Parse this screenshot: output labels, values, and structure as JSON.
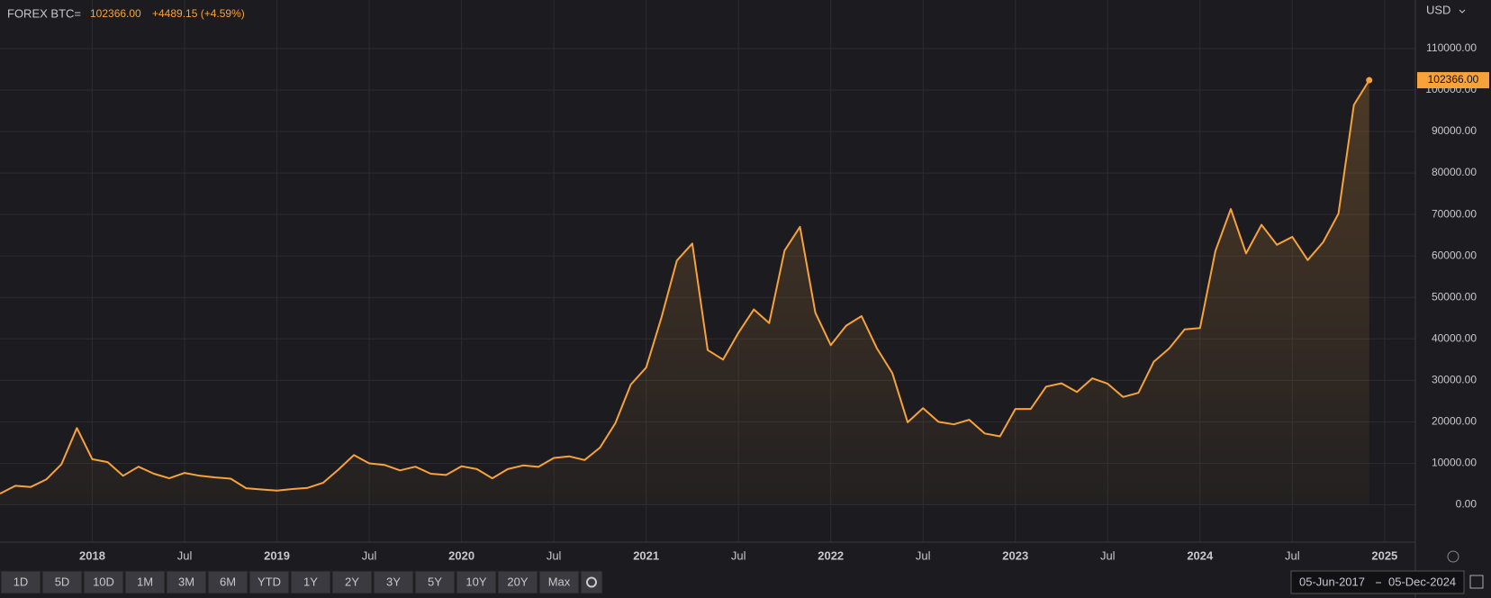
{
  "header": {
    "symbol": "FOREX BTC=",
    "price": "102366.00",
    "change": "+4489.15 (+4.59%)",
    "currency": "USD"
  },
  "chart_data": {
    "type": "line",
    "x": [
      "2017-07",
      "2017-08",
      "2017-09",
      "2017-10",
      "2017-11",
      "2017-12",
      "2018-01",
      "2018-02",
      "2018-03",
      "2018-04",
      "2018-05",
      "2018-06",
      "2018-07",
      "2018-08",
      "2018-09",
      "2018-10",
      "2018-11",
      "2018-12",
      "2019-01",
      "2019-02",
      "2019-03",
      "2019-04",
      "2019-05",
      "2019-06",
      "2019-07",
      "2019-08",
      "2019-09",
      "2019-10",
      "2019-11",
      "2019-12",
      "2020-01",
      "2020-02",
      "2020-03",
      "2020-04",
      "2020-05",
      "2020-06",
      "2020-07",
      "2020-08",
      "2020-09",
      "2020-10",
      "2020-11",
      "2020-12",
      "2021-01",
      "2021-02",
      "2021-03",
      "2021-04",
      "2021-05",
      "2021-06",
      "2021-07",
      "2021-08",
      "2021-09",
      "2021-10",
      "2021-11",
      "2021-12",
      "2022-01",
      "2022-02",
      "2022-03",
      "2022-04",
      "2022-05",
      "2022-06",
      "2022-07",
      "2022-08",
      "2022-09",
      "2022-10",
      "2022-11",
      "2022-12",
      "2023-01",
      "2023-02",
      "2023-03",
      "2023-04",
      "2023-05",
      "2023-06",
      "2023-07",
      "2023-08",
      "2023-09",
      "2023-10",
      "2023-11",
      "2023-12",
      "2024-01",
      "2024-02",
      "2024-03",
      "2024-04",
      "2024-05",
      "2024-06",
      "2024-07",
      "2024-08",
      "2024-09",
      "2024-10",
      "2024-11",
      "2024-12"
    ],
    "series": [
      {
        "name": "BTC",
        "color": "#f7a23b",
        "values": [
          2700,
          4600,
          4300,
          6100,
          9800,
          18500,
          11000,
          10300,
          7000,
          9200,
          7500,
          6400,
          7700,
          7000,
          6600,
          6300,
          4000,
          3700,
          3450,
          3800,
          4100,
          5300,
          8500,
          12000,
          10000,
          9600,
          8300,
          9200,
          7500,
          7200,
          9300,
          8600,
          6400,
          8600,
          9500,
          9150,
          11300,
          11700,
          10800,
          13800,
          19700,
          29000,
          33100,
          45200,
          58900,
          63000,
          37300,
          35000,
          41500,
          47100,
          43800,
          61300,
          67000,
          46300,
          38500,
          43200,
          45500,
          37700,
          31800,
          19900,
          23300,
          20000,
          19400,
          20500,
          17200,
          16500,
          23100,
          23100,
          28500,
          29300,
          27200,
          30500,
          29200,
          26000,
          27000,
          34500,
          37700,
          42300,
          42600,
          61200,
          71300,
          60600,
          67500,
          62700,
          64600,
          59000,
          63300,
          70200,
          96400,
          102366
        ]
      }
    ],
    "xlim": [
      "2017-07",
      "2025-03"
    ],
    "xticks": [
      {
        "value": "2018-01",
        "label": "2018"
      },
      {
        "value": "2018-07",
        "label": "Jul"
      },
      {
        "value": "2019-01",
        "label": "2019"
      },
      {
        "value": "2019-07",
        "label": "Jul"
      },
      {
        "value": "2020-01",
        "label": "2020"
      },
      {
        "value": "2020-07",
        "label": "Jul"
      },
      {
        "value": "2021-01",
        "label": "2021"
      },
      {
        "value": "2021-07",
        "label": "Jul"
      },
      {
        "value": "2022-01",
        "label": "2022"
      },
      {
        "value": "2022-07",
        "label": "Jul"
      },
      {
        "value": "2023-01",
        "label": "2023"
      },
      {
        "value": "2023-07",
        "label": "Jul"
      },
      {
        "value": "2024-01",
        "label": "2024"
      },
      {
        "value": "2024-07",
        "label": "Jul"
      },
      {
        "value": "2025-01",
        "label": "2025"
      }
    ],
    "ylim": [
      -9000,
      121700
    ],
    "yticks": [
      {
        "value": 0,
        "label": "0.00"
      },
      {
        "value": 10000,
        "label": "10000.00"
      },
      {
        "value": 20000,
        "label": "20000.00"
      },
      {
        "value": 30000,
        "label": "30000.00"
      },
      {
        "value": 40000,
        "label": "40000.00"
      },
      {
        "value": 50000,
        "label": "50000.00"
      },
      {
        "value": 60000,
        "label": "60000.00"
      },
      {
        "value": 70000,
        "label": "70000.00"
      },
      {
        "value": 80000,
        "label": "80000.00"
      },
      {
        "value": 90000,
        "label": "90000.00"
      },
      {
        "value": 100000,
        "label": "100000.00"
      },
      {
        "value": 110000,
        "label": "110000.00"
      }
    ],
    "grid": true
  },
  "toolbar": {
    "ranges": [
      "1D",
      "5D",
      "10D",
      "1M",
      "3M",
      "6M",
      "YTD",
      "1Y",
      "2Y",
      "3Y",
      "5Y",
      "10Y",
      "20Y",
      "Max"
    ],
    "date_from": "05-Jun-2017",
    "date_to": "05-Dec-2024"
  }
}
